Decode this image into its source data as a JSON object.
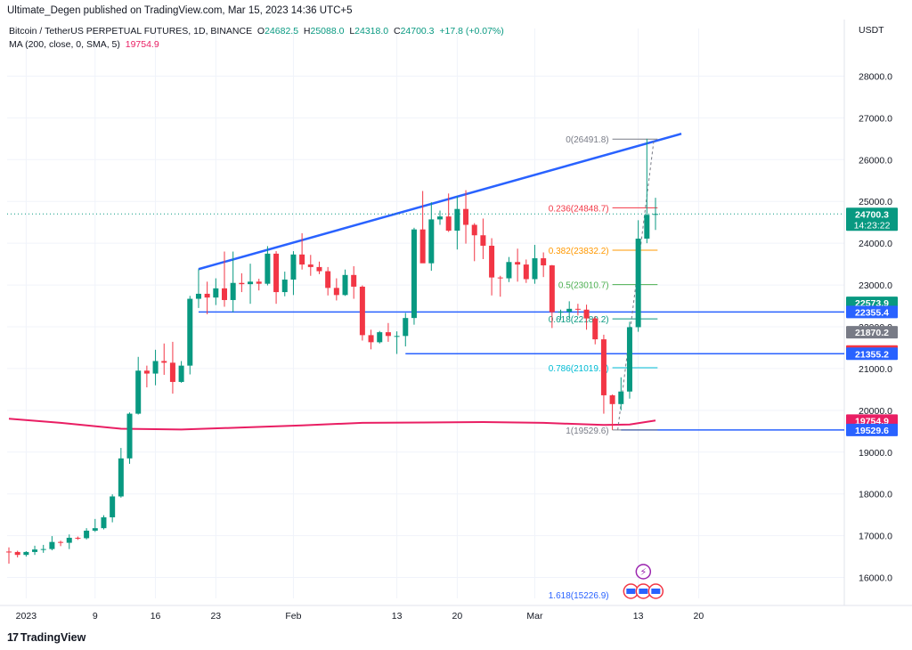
{
  "header": {
    "publisher_line": "Ultimate_Degen published on TradingView.com, Mar 15, 2023 14:36 UTC+5"
  },
  "legend": {
    "symbol": "Bitcoin / TetherUS PERPETUAL FUTURES, 1D, BINANCE",
    "o_label": "O",
    "o": "24682.5",
    "h_label": "H",
    "h": "25088.0",
    "l_label": "L",
    "l": "24318.0",
    "c_label": "C",
    "c": "24700.3",
    "change": "+17.8 (+0.07%)",
    "ma_label": "MA (200, close, 0, SMA, 5)",
    "ma_value": "19754.9"
  },
  "footer": {
    "brand": "TradingView",
    "mark": "17"
  },
  "colors": {
    "up": "#089981",
    "down": "#f23645",
    "trendline": "#2962ff",
    "ma": "#e91e63",
    "grid": "#f0f3fa",
    "axis_text": "#131722",
    "last_price": "#089981"
  },
  "chart_data": {
    "type": "candlestick",
    "currency_label": "USDT",
    "ylim": [
      15500,
      28500
    ],
    "y_ticks": [
      "16000.0",
      "17000.0",
      "18000.0",
      "19000.0",
      "20000.0",
      "21000.0",
      "22000.0",
      "23000.0",
      "24000.0",
      "25000.0",
      "26000.0",
      "27000.0",
      "28000.0"
    ],
    "x_ticks": [
      {
        "label": "2023",
        "date": "2023-01-01"
      },
      {
        "label": "9",
        "date": "2023-01-09"
      },
      {
        "label": "16",
        "date": "2023-01-16"
      },
      {
        "label": "23",
        "date": "2023-01-23"
      },
      {
        "label": "Feb",
        "date": "2023-02-01"
      },
      {
        "label": "13",
        "date": "2023-02-13"
      },
      {
        "label": "20",
        "date": "2023-02-20"
      },
      {
        "label": "Mar",
        "date": "2023-03-01"
      },
      {
        "label": "13",
        "date": "2023-03-13"
      },
      {
        "label": "20",
        "date": "2023-03-20"
      }
    ],
    "x_range": [
      "2022-12-30",
      "2023-03-21"
    ],
    "candles": [
      {
        "d": "2022-12-30",
        "o": 16620,
        "h": 16720,
        "l": 16330,
        "c": 16610
      },
      {
        "d": "2022-12-31",
        "o": 16610,
        "h": 16640,
        "l": 16480,
        "c": 16540
      },
      {
        "d": "2023-01-01",
        "o": 16540,
        "h": 16630,
        "l": 16500,
        "c": 16610
      },
      {
        "d": "2023-01-02",
        "o": 16610,
        "h": 16760,
        "l": 16540,
        "c": 16670
      },
      {
        "d": "2023-01-03",
        "o": 16670,
        "h": 16780,
        "l": 16590,
        "c": 16680
      },
      {
        "d": "2023-01-04",
        "o": 16680,
        "h": 16990,
        "l": 16650,
        "c": 16850
      },
      {
        "d": "2023-01-05",
        "o": 16850,
        "h": 16880,
        "l": 16750,
        "c": 16830
      },
      {
        "d": "2023-01-06",
        "o": 16830,
        "h": 17030,
        "l": 16680,
        "c": 16950
      },
      {
        "d": "2023-01-07",
        "o": 16950,
        "h": 16980,
        "l": 16900,
        "c": 16940
      },
      {
        "d": "2023-01-08",
        "o": 16940,
        "h": 17180,
        "l": 16910,
        "c": 17120
      },
      {
        "d": "2023-01-09",
        "o": 17120,
        "h": 17400,
        "l": 17090,
        "c": 17180
      },
      {
        "d": "2023-01-10",
        "o": 17180,
        "h": 17490,
        "l": 17150,
        "c": 17440
      },
      {
        "d": "2023-01-11",
        "o": 17440,
        "h": 17990,
        "l": 17320,
        "c": 17940
      },
      {
        "d": "2023-01-12",
        "o": 17940,
        "h": 19100,
        "l": 17910,
        "c": 18850
      },
      {
        "d": "2023-01-13",
        "o": 18850,
        "h": 19950,
        "l": 18720,
        "c": 19920
      },
      {
        "d": "2023-01-14",
        "o": 19920,
        "h": 21280,
        "l": 19900,
        "c": 20950
      },
      {
        "d": "2023-01-15",
        "o": 20950,
        "h": 21070,
        "l": 20550,
        "c": 20880
      },
      {
        "d": "2023-01-16",
        "o": 20880,
        "h": 21450,
        "l": 20600,
        "c": 21180
      },
      {
        "d": "2023-01-17",
        "o": 21180,
        "h": 21600,
        "l": 20850,
        "c": 21140
      },
      {
        "d": "2023-01-18",
        "o": 21140,
        "h": 21640,
        "l": 20400,
        "c": 20680
      },
      {
        "d": "2023-01-19",
        "o": 20680,
        "h": 21180,
        "l": 20660,
        "c": 21070
      },
      {
        "d": "2023-01-20",
        "o": 21070,
        "h": 22740,
        "l": 20860,
        "c": 22670
      },
      {
        "d": "2023-01-21",
        "o": 22670,
        "h": 23380,
        "l": 22450,
        "c": 22790
      },
      {
        "d": "2023-01-22",
        "o": 22790,
        "h": 23080,
        "l": 22300,
        "c": 22700
      },
      {
        "d": "2023-01-23",
        "o": 22700,
        "h": 23160,
        "l": 22520,
        "c": 22920
      },
      {
        "d": "2023-01-24",
        "o": 22920,
        "h": 23800,
        "l": 22480,
        "c": 22640
      },
      {
        "d": "2023-01-25",
        "o": 22640,
        "h": 23800,
        "l": 22350,
        "c": 23050
      },
      {
        "d": "2023-01-26",
        "o": 23050,
        "h": 23280,
        "l": 22830,
        "c": 23020
      },
      {
        "d": "2023-01-27",
        "o": 23020,
        "h": 23510,
        "l": 22550,
        "c": 23080
      },
      {
        "d": "2023-01-28",
        "o": 23080,
        "h": 23150,
        "l": 22870,
        "c": 23030
      },
      {
        "d": "2023-01-29",
        "o": 23030,
        "h": 23930,
        "l": 22990,
        "c": 23750
      },
      {
        "d": "2023-01-30",
        "o": 23750,
        "h": 23810,
        "l": 22550,
        "c": 22830
      },
      {
        "d": "2023-01-31",
        "o": 22830,
        "h": 23320,
        "l": 22730,
        "c": 23130
      },
      {
        "d": "2023-02-01",
        "o": 23130,
        "h": 23810,
        "l": 22760,
        "c": 23730
      },
      {
        "d": "2023-02-02",
        "o": 23730,
        "h": 24240,
        "l": 23370,
        "c": 23490
      },
      {
        "d": "2023-02-03",
        "o": 23490,
        "h": 23720,
        "l": 23220,
        "c": 23430
      },
      {
        "d": "2023-02-04",
        "o": 23430,
        "h": 23560,
        "l": 23260,
        "c": 23330
      },
      {
        "d": "2023-02-05",
        "o": 23330,
        "h": 23430,
        "l": 22750,
        "c": 22930
      },
      {
        "d": "2023-02-06",
        "o": 22930,
        "h": 23160,
        "l": 22630,
        "c": 22760
      },
      {
        "d": "2023-02-07",
        "o": 22760,
        "h": 23370,
        "l": 22740,
        "c": 23240
      },
      {
        "d": "2023-02-08",
        "o": 23240,
        "h": 23450,
        "l": 22670,
        "c": 22960
      },
      {
        "d": "2023-02-09",
        "o": 22960,
        "h": 22990,
        "l": 21670,
        "c": 21800
      },
      {
        "d": "2023-02-10",
        "o": 21800,
        "h": 21930,
        "l": 21460,
        "c": 21630
      },
      {
        "d": "2023-02-11",
        "o": 21630,
        "h": 21900,
        "l": 21600,
        "c": 21870
      },
      {
        "d": "2023-02-12",
        "o": 21870,
        "h": 22090,
        "l": 21640,
        "c": 21780
      },
      {
        "d": "2023-02-13",
        "o": 21780,
        "h": 21890,
        "l": 21350,
        "c": 21780
      },
      {
        "d": "2023-02-14",
        "o": 21780,
        "h": 22330,
        "l": 21530,
        "c": 22210
      },
      {
        "d": "2023-02-15",
        "o": 22210,
        "h": 24370,
        "l": 22050,
        "c": 24330
      },
      {
        "d": "2023-02-16",
        "o": 24330,
        "h": 25250,
        "l": 23540,
        "c": 23520
      },
      {
        "d": "2023-02-17",
        "o": 23520,
        "h": 24980,
        "l": 23340,
        "c": 24570
      },
      {
        "d": "2023-02-18",
        "o": 24570,
        "h": 24780,
        "l": 24440,
        "c": 24640
      },
      {
        "d": "2023-02-19",
        "o": 24640,
        "h": 25190,
        "l": 24270,
        "c": 24300
      },
      {
        "d": "2023-02-20",
        "o": 24300,
        "h": 25120,
        "l": 23850,
        "c": 24820
      },
      {
        "d": "2023-02-21",
        "o": 24820,
        "h": 25270,
        "l": 23990,
        "c": 24440
      },
      {
        "d": "2023-02-22",
        "o": 24440,
        "h": 24480,
        "l": 23570,
        "c": 24190
      },
      {
        "d": "2023-02-23",
        "o": 24190,
        "h": 24590,
        "l": 23620,
        "c": 23940
      },
      {
        "d": "2023-02-24",
        "o": 23940,
        "h": 24120,
        "l": 22750,
        "c": 23180
      },
      {
        "d": "2023-02-25",
        "o": 23180,
        "h": 23220,
        "l": 22720,
        "c": 23160
      },
      {
        "d": "2023-02-26",
        "o": 23160,
        "h": 23670,
        "l": 23070,
        "c": 23550
      },
      {
        "d": "2023-02-27",
        "o": 23550,
        "h": 23870,
        "l": 23080,
        "c": 23490
      },
      {
        "d": "2023-02-28",
        "o": 23490,
        "h": 23610,
        "l": 23050,
        "c": 23140
      },
      {
        "d": "2023-03-01",
        "o": 23140,
        "h": 23960,
        "l": 23030,
        "c": 23640
      },
      {
        "d": "2023-03-02",
        "o": 23640,
        "h": 23780,
        "l": 23190,
        "c": 23470
      },
      {
        "d": "2023-03-03",
        "o": 23470,
        "h": 23480,
        "l": 21970,
        "c": 22350
      },
      {
        "d": "2023-03-04",
        "o": 22350,
        "h": 22410,
        "l": 22170,
        "c": 22360
      },
      {
        "d": "2023-03-05",
        "o": 22360,
        "h": 22610,
        "l": 22210,
        "c": 22430
      },
      {
        "d": "2023-03-06",
        "o": 22430,
        "h": 22550,
        "l": 22270,
        "c": 22410
      },
      {
        "d": "2023-03-07",
        "o": 22410,
        "h": 22530,
        "l": 21930,
        "c": 22200
      },
      {
        "d": "2023-03-08",
        "o": 22200,
        "h": 22250,
        "l": 21580,
        "c": 21700
      },
      {
        "d": "2023-03-09",
        "o": 21700,
        "h": 21810,
        "l": 19920,
        "c": 20360
      },
      {
        "d": "2023-03-10",
        "o": 20360,
        "h": 20380,
        "l": 19530,
        "c": 20150
      },
      {
        "d": "2023-03-11",
        "o": 20150,
        "h": 20790,
        "l": 20000,
        "c": 20450
      },
      {
        "d": "2023-03-12",
        "o": 20450,
        "h": 22120,
        "l": 20280,
        "c": 21990
      },
      {
        "d": "2023-03-13",
        "o": 21990,
        "h": 24550,
        "l": 21880,
        "c": 24110
      },
      {
        "d": "2023-03-14",
        "o": 24110,
        "h": 26500,
        "l": 24000,
        "c": 24680
      },
      {
        "d": "2023-03-15",
        "o": 24682.5,
        "h": 25088.0,
        "l": 24318.0,
        "c": 24700.3
      }
    ],
    "ma200": [
      {
        "d": "2022-12-30",
        "v": 19800
      },
      {
        "d": "2023-01-05",
        "v": 19700
      },
      {
        "d": "2023-01-12",
        "v": 19560
      },
      {
        "d": "2023-01-19",
        "v": 19540
      },
      {
        "d": "2023-01-26",
        "v": 19590
      },
      {
        "d": "2023-02-02",
        "v": 19640
      },
      {
        "d": "2023-02-09",
        "v": 19700
      },
      {
        "d": "2023-02-16",
        "v": 19710
      },
      {
        "d": "2023-02-23",
        "v": 19720
      },
      {
        "d": "2023-03-02",
        "v": 19700
      },
      {
        "d": "2023-03-09",
        "v": 19650
      },
      {
        "d": "2023-03-12",
        "v": 19660
      },
      {
        "d": "2023-03-15",
        "v": 19754.9
      }
    ],
    "trendline": [
      {
        "d": "2023-01-21",
        "v": 23380
      },
      {
        "d": "2023-03-18",
        "v": 26620
      }
    ],
    "support_lines": [
      {
        "from": "2023-01-21",
        "v": 22355.4,
        "label": "22355.4"
      },
      {
        "from": "2023-02-14",
        "v": 21355.2,
        "label": "21355.2"
      },
      {
        "from": "2023-03-11",
        "v": 19529.6,
        "label": "19529.6"
      }
    ],
    "fib_levels": [
      {
        "ratio": "0",
        "price": "26491.8",
        "v": 26491.8,
        "label": "0(26491.8)",
        "color": "#787b86"
      },
      {
        "ratio": "0.236",
        "price": "24848.7",
        "v": 24848.7,
        "label": "0.236(24848.7)",
        "color": "#f23645"
      },
      {
        "ratio": "0.382",
        "price": "23832.2",
        "v": 23832.2,
        "label": "0.382(23832.2)",
        "color": "#ff9800"
      },
      {
        "ratio": "0.5",
        "price": "23010.7",
        "v": 23010.7,
        "label": "0.5(23010.7)",
        "color": "#4caf50"
      },
      {
        "ratio": "0.618",
        "price": "22189.2",
        "v": 22189.2,
        "label": "0.618(22189.2)",
        "color": "#089981"
      },
      {
        "ratio": "0.786",
        "price": "21019.5",
        "v": 21019.5,
        "label": "0.786(21019.5)",
        "color": "#00bcd4"
      },
      {
        "ratio": "1",
        "price": "19529.6",
        "v": 19529.6,
        "label": "1(19529.6)",
        "color": "#787b86"
      },
      {
        "ratio": "1.618",
        "price": "15226.9",
        "v": 15226.9,
        "label": "1.618(15226.9)",
        "color": "#2962ff"
      }
    ],
    "fib_range": {
      "from": "2023-03-10",
      "to": "2023-03-14"
    },
    "price_badges": [
      {
        "label": "24700.3",
        "sub": "14:23:22",
        "v": 24700.3,
        "color": "#089981"
      },
      {
        "label": "22573.9",
        "v": 22573.9,
        "color": "#089981"
      },
      {
        "label": "22355.4",
        "v": 22355.4,
        "color": "#2962ff"
      },
      {
        "label": "21870.2",
        "v": 21870.2,
        "color": "#787b86"
      },
      {
        "label": "21409.0",
        "v": 21409.0,
        "color": "#f23645"
      },
      {
        "label": "21355.2",
        "v": 21355.2,
        "color": "#2962ff"
      },
      {
        "label": "19754.9",
        "v": 19754.9,
        "color": "#e91e63"
      },
      {
        "label": "19529.6",
        "v": 19529.6,
        "color": "#2962ff"
      }
    ],
    "grid": true
  }
}
